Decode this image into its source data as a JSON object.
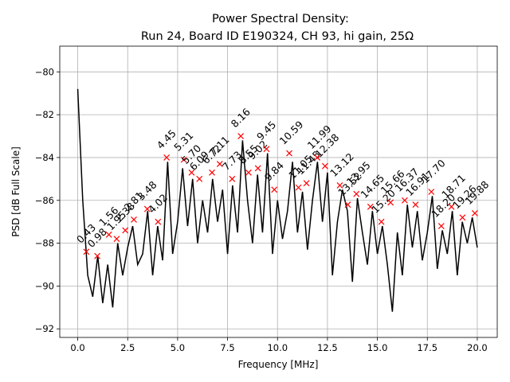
{
  "chart_data": {
    "type": "line",
    "title": "Power Spectral Density:",
    "subtitle": "Run 24, Board ID E190324, CH 93, hi gain, 25Ω",
    "xlabel": "Frequency [MHz]",
    "ylabel": "PSD [dB Full Scale]",
    "xlim": [
      -0.9,
      21.0
    ],
    "ylim": [
      -92.4,
      -78.8
    ],
    "xticks": [
      {
        "value": 0,
        "label": "0.0"
      },
      2.5,
      {
        "value": 5,
        "label": "5.0"
      },
      7.5,
      {
        "value": 10,
        "label": "10.0"
      },
      12.5,
      {
        "value": 15,
        "label": "15.0"
      },
      17.5,
      {
        "value": 20,
        "label": "20.0"
      }
    ],
    "yticks": [
      {
        "value": -92,
        "label": "−92"
      },
      {
        "value": -90,
        "label": "−90"
      },
      {
        "value": -88,
        "label": "−88"
      },
      {
        "value": -86,
        "label": "−86"
      },
      {
        "value": -84,
        "label": "−84"
      },
      {
        "value": -82,
        "label": "−82"
      },
      {
        "value": -80,
        "label": "−80"
      }
    ],
    "grid": true,
    "color": "#000000",
    "x": [
      0,
      0.25,
      0.5,
      0.75,
      1,
      1.25,
      1.5,
      1.75,
      2,
      2.25,
      2.5,
      2.75,
      3,
      3.25,
      3.5,
      3.75,
      4,
      4.25,
      4.5,
      4.75,
      5,
      5.25,
      5.5,
      5.75,
      6,
      6.25,
      6.5,
      6.75,
      7,
      7.25,
      7.5,
      7.75,
      8,
      8.25,
      8.5,
      8.75,
      9,
      9.25,
      9.5,
      9.75,
      10,
      10.25,
      10.5,
      10.75,
      11,
      11.25,
      11.5,
      11.75,
      12,
      12.25,
      12.5,
      12.75,
      13,
      13.25,
      13.5,
      13.75,
      14,
      14.25,
      14.5,
      14.75,
      15,
      15.25,
      15.5,
      15.75,
      16,
      16.25,
      16.5,
      16.75,
      17,
      17.25,
      17.5,
      17.75,
      18,
      18.25,
      18.5,
      18.75,
      19,
      19.25,
      19.5,
      19.75,
      20
    ],
    "values": [
      -80.8,
      -86.0,
      -89.5,
      -90.5,
      -88.6,
      -90.8,
      -89.0,
      -91.0,
      -88.0,
      -89.5,
      -88.2,
      -87.2,
      -89.0,
      -88.5,
      -86.5,
      -89.5,
      -87.2,
      -88.8,
      -84.2,
      -88.5,
      -87.0,
      -84.5,
      -87.2,
      -85.0,
      -88.0,
      -86.0,
      -87.5,
      -85.0,
      -87.0,
      -85.5,
      -88.5,
      -85.3,
      -87.5,
      -83.2,
      -86.0,
      -88.0,
      -84.8,
      -87.5,
      -83.8,
      -88.5,
      -86.0,
      -87.8,
      -86.5,
      -84.2,
      -87.5,
      -85.6,
      -88.3,
      -86.0,
      -84.2,
      -87.0,
      -84.7,
      -89.5,
      -87.0,
      -85.5,
      -86.5,
      -89.8,
      -85.9,
      -87.5,
      -89.0,
      -86.5,
      -88.5,
      -87.2,
      -89.0,
      -91.2,
      -87.5,
      -89.5,
      -86.2,
      -88.2,
      -86.5,
      -88.8,
      -87.5,
      -85.8,
      -89.2,
      -87.4,
      -88.5,
      -86.5,
      -89.5,
      -87.0,
      -88.0,
      -86.8,
      -88.2
    ],
    "peaks": {
      "color": "#ff0000",
      "x": [
        0.43,
        0.98,
        1.56,
        1.95,
        2.38,
        2.81,
        3.48,
        4.02,
        4.45,
        5.31,
        5.7,
        6.09,
        6.72,
        7.11,
        7.73,
        8.16,
        8.55,
        9.02,
        9.45,
        9.84,
        10.59,
        11.05,
        11.45,
        11.99,
        12.38,
        13.12,
        13.52,
        13.95,
        14.65,
        15.2,
        15.66,
        16.37,
        16.91,
        17.7,
        18.2,
        18.71,
        19.26,
        19.88
      ],
      "values": [
        -88.4,
        -88.6,
        -87.6,
        -87.8,
        -87.4,
        -86.9,
        -86.4,
        -87.0,
        -84.0,
        -84.1,
        -84.7,
        -85.0,
        -84.7,
        -84.3,
        -85.0,
        -83.0,
        -84.7,
        -84.5,
        -83.6,
        -85.5,
        -83.8,
        -85.4,
        -85.2,
        -84.0,
        -84.4,
        -85.3,
        -86.2,
        -85.7,
        -86.3,
        -87.0,
        -86.1,
        -86.0,
        -86.2,
        -85.6,
        -87.2,
        -86.3,
        -86.8,
        -86.6
      ],
      "value_labels": [
        "0.43",
        "0.98",
        "1.56",
        "1.95",
        "2.38",
        "2.81",
        "3.48",
        "4.02",
        "4.45",
        "5.31",
        "5.70",
        "6.09",
        "6.72",
        "7.11",
        "7.73",
        "8.16",
        "8.55",
        "9.02",
        "9.45",
        "9.84",
        "10.59",
        "11.05",
        "11.45",
        "11.99",
        "12.38",
        "13.12",
        "13.52",
        "13.95",
        "14.65",
        "15.20",
        "15.66",
        "16.37",
        "16.91",
        "17.70",
        "18.20",
        "18.71",
        "19.26",
        "19.88"
      ]
    }
  }
}
